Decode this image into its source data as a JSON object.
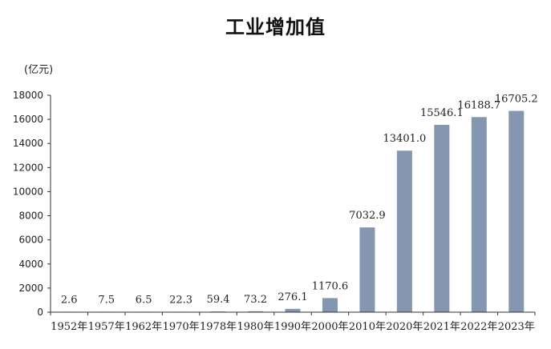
{
  "chart_data": {
    "type": "bar",
    "title": "工业增加值",
    "ylabel": "(亿元)",
    "xlabel": "",
    "ylim": [
      0,
      18000
    ],
    "yticks": [
      0,
      2000,
      4000,
      6000,
      8000,
      10000,
      12000,
      14000,
      16000,
      18000
    ],
    "categories": [
      "1952年",
      "1957年",
      "1962年",
      "1970年",
      "1978年",
      "1980年",
      "1990年",
      "2000年",
      "2010年",
      "2020年",
      "2021年",
      "2022年",
      "2023年"
    ],
    "values": [
      2.6,
      7.5,
      6.5,
      22.3,
      59.4,
      73.2,
      276.1,
      1170.6,
      7032.9,
      13401.0,
      15546.1,
      16188.7,
      16705.2
    ],
    "value_labels": [
      "2.6",
      "7.5",
      "6.5",
      "22.3",
      "59.4",
      "73.2",
      "276.1",
      "1170.6",
      "7032.9",
      "13401.0",
      "15546.1",
      "16188.7",
      "16705.2"
    ],
    "bar_color": "#8496b0",
    "grid": false,
    "legend": "none"
  }
}
